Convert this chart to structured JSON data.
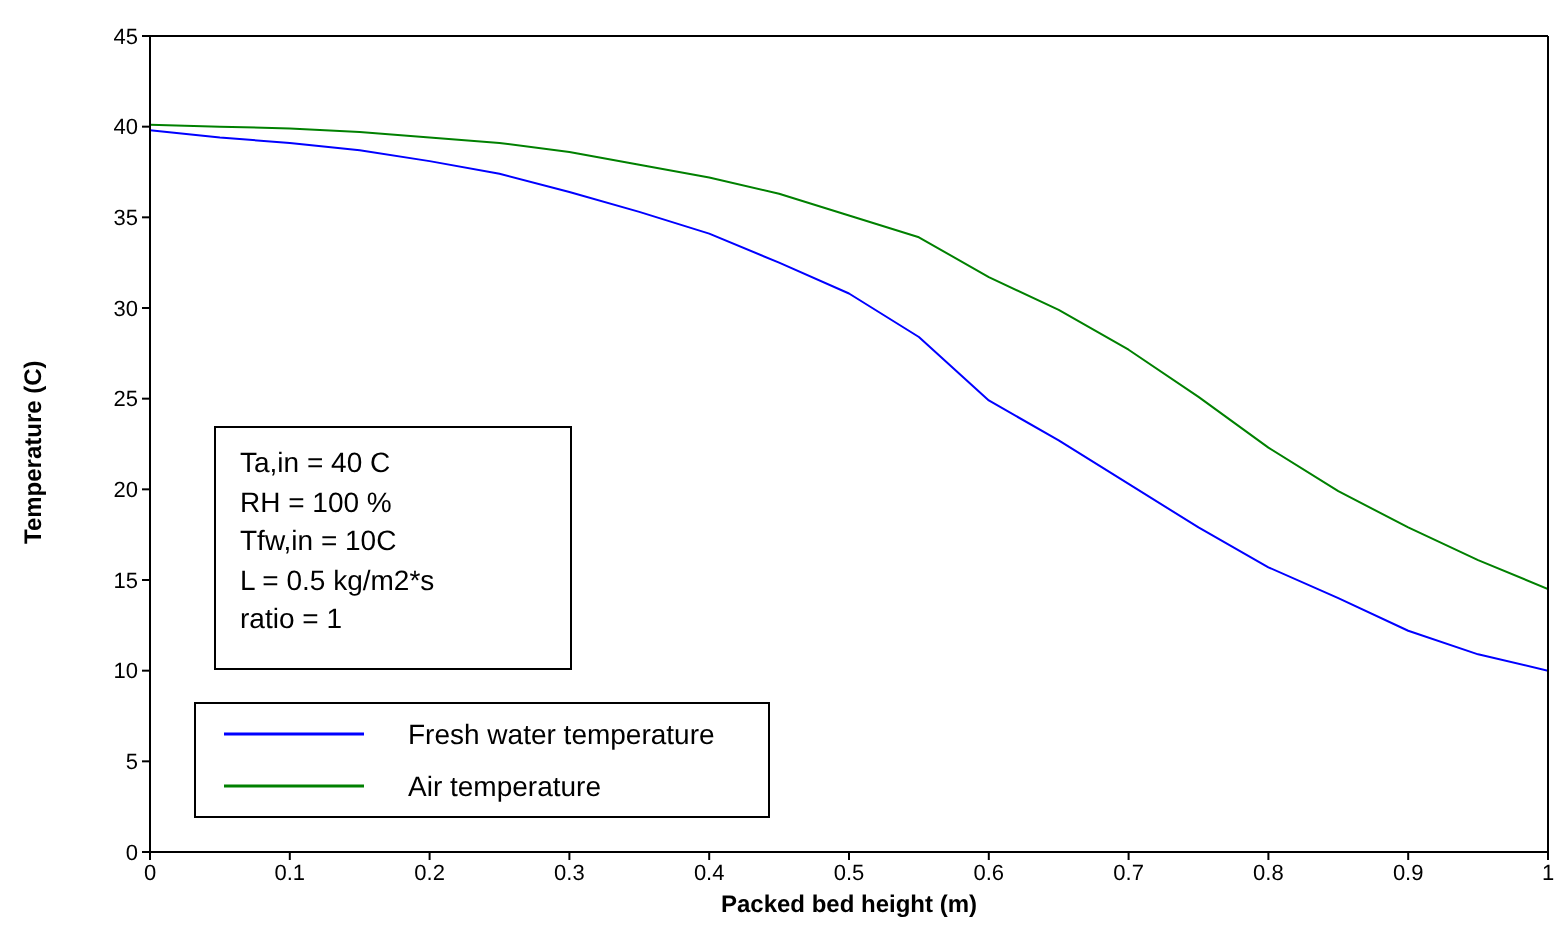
{
  "chart_data": {
    "type": "line",
    "xlabel": "Packed bed height (m)",
    "ylabel": "Temperature (C)",
    "x": [
      0,
      0.05,
      0.1,
      0.15,
      0.2,
      0.25,
      0.3,
      0.35,
      0.4,
      0.45,
      0.5,
      0.55,
      0.6,
      0.65,
      0.7,
      0.75,
      0.8,
      0.85,
      0.9,
      0.95,
      1
    ],
    "series": [
      {
        "name": "Fresh water temperature",
        "color": "#0000ff",
        "values": [
          39.8,
          39.4,
          39.1,
          38.7,
          38.1,
          37.4,
          36.4,
          35.3,
          34.1,
          32.5,
          30.8,
          28.4,
          24.9,
          22.7,
          20.3,
          17.9,
          15.7,
          14.0,
          12.2,
          10.9,
          10.0
        ]
      },
      {
        "name": "Air temperature",
        "color": "#008000",
        "values": [
          40.1,
          40.0,
          39.9,
          39.7,
          39.4,
          39.1,
          38.6,
          37.9,
          37.2,
          36.3,
          35.1,
          33.9,
          31.7,
          29.9,
          27.7,
          25.1,
          22.3,
          19.9,
          17.9,
          16.1,
          14.5
        ]
      }
    ],
    "xlim": [
      0,
      1
    ],
    "xticks": [
      0,
      0.1,
      0.2,
      0.3,
      0.4,
      0.5,
      0.6,
      0.7,
      0.8,
      0.9,
      1
    ],
    "ylim": [
      0,
      45
    ],
    "yticks": [
      0,
      5,
      10,
      15,
      20,
      25,
      30,
      35,
      40,
      45
    ],
    "legend": "bottom left",
    "grid": false,
    "marker": "none",
    "line_style": "solid",
    "annotations": [
      "Ta,in = 40 C",
      "RH = 100 %",
      "Tfw,in = 10C",
      "L = 0.5 kg/m2*s",
      "ratio = 1"
    ]
  }
}
